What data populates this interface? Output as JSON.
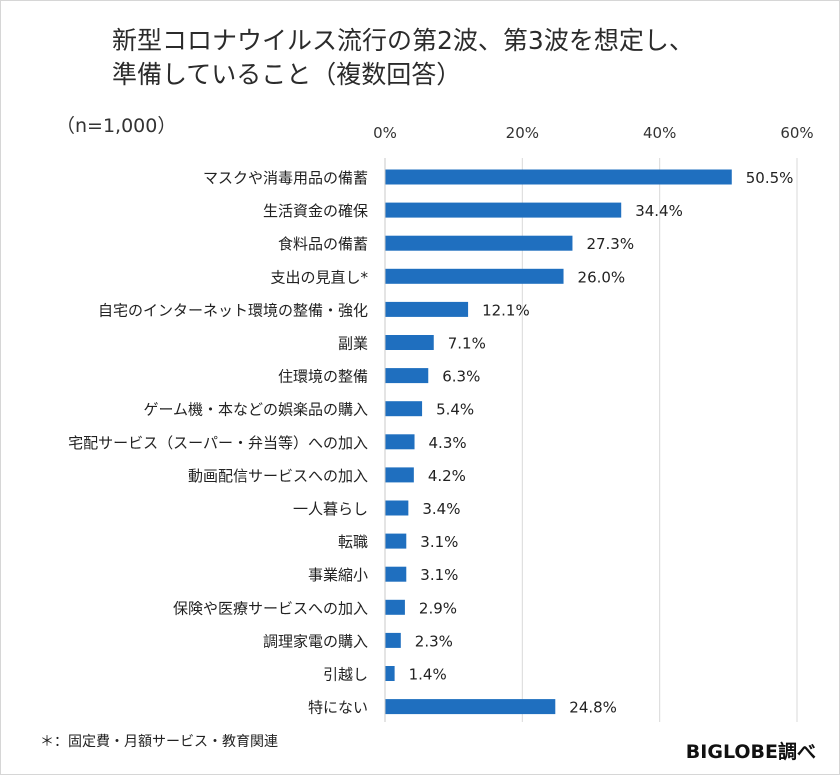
{
  "chart_data": {
    "type": "bar",
    "orientation": "horizontal",
    "title": [
      "新型コロナウイルス流行の第2波、第3波を想定し、",
      "準備していること（複数回答）"
    ],
    "sample_size_label": "（n=1,000）",
    "categories": [
      "マスクや消毒用品の備蓄",
      "生活資金の確保",
      "食料品の備蓄",
      "支出の見直し*",
      "自宅のインターネット環境の整備・強化",
      "副業",
      "住環境の整備",
      "ゲーム機・本などの娯楽品の購入",
      "宅配サービス（スーパー・弁当等）への加入",
      "動画配信サービスへの加入",
      "一人暮らし",
      "転職",
      "事業縮小",
      "保険や医療サービスへの加入",
      "調理家電の購入",
      "引越し",
      "特にない"
    ],
    "values": [
      50.5,
      34.4,
      27.3,
      26.0,
      12.1,
      7.1,
      6.3,
      5.4,
      4.3,
      4.2,
      3.4,
      3.1,
      3.1,
      2.9,
      2.3,
      1.4,
      24.8
    ],
    "value_labels": [
      "50.5%",
      "34.4%",
      "27.3%",
      "26.0%",
      "12.1%",
      "7.1%",
      "6.3%",
      "5.4%",
      "4.3%",
      "4.2%",
      "3.4%",
      "3.1%",
      "3.1%",
      "2.9%",
      "2.3%",
      "1.4%",
      "24.8%"
    ],
    "xlim": [
      0,
      60
    ],
    "xticks": [
      0,
      20,
      40,
      60
    ],
    "xtick_labels": [
      "0%",
      "20%",
      "40%",
      "60%"
    ],
    "grid": true,
    "legend": "none",
    "bar_color": "#1f6fbf",
    "grid_color": "#d9d9d9"
  },
  "footnote": "＊：固定費・月額サービス・教育関連",
  "source": "BIGLOBE調べ"
}
